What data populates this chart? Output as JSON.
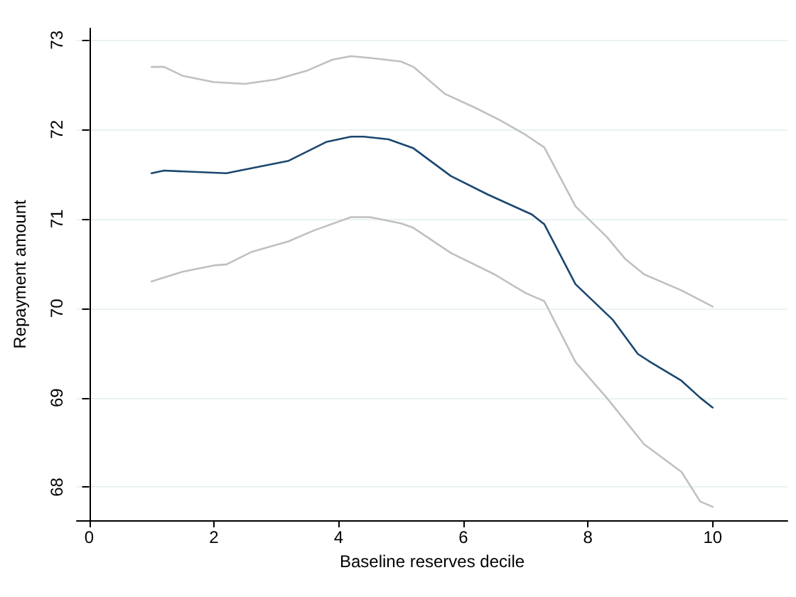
{
  "chart_data": {
    "type": "line",
    "xlabel": "Baseline reserves decile",
    "ylabel": "Repayment amount",
    "xlim": [
      -0.2,
      11.2
    ],
    "xticks": [
      0,
      2,
      4,
      6,
      8,
      10
    ],
    "ylim": [
      67.63,
      73.13
    ],
    "yticks": [
      68,
      69,
      70,
      71,
      72,
      73
    ],
    "grid": "y",
    "marker": "none",
    "line_style": "solid",
    "series": [
      {
        "color": "#c0c0c0",
        "x": [
          1,
          1.2,
          1.5,
          2,
          2.5,
          3,
          3.5,
          3.9,
          4.2,
          4.5,
          5.0,
          5.2,
          5.7,
          6.2,
          6.6,
          7.0,
          7.3,
          7.8,
          8.3,
          8.6,
          8.9,
          9.5,
          10
        ],
        "values": [
          72.7,
          72.7,
          72.6,
          72.53,
          72.51,
          72.56,
          72.66,
          72.78,
          72.82,
          72.8,
          72.76,
          72.7,
          72.4,
          72.24,
          72.1,
          71.94,
          71.8,
          71.14,
          70.8,
          70.55,
          70.38,
          70.2,
          70.02
        ]
      },
      {
        "color": "#1a476f",
        "x": [
          1,
          1.2,
          2.2,
          3.2,
          3.8,
          4.2,
          4.4,
          4.8,
          5.2,
          5.8,
          6.4,
          7.1,
          7.3,
          7.8,
          8.4,
          8.8,
          9.0,
          9.5,
          9.8,
          10
        ],
        "values": [
          71.51,
          71.54,
          71.51,
          71.65,
          71.86,
          71.92,
          71.92,
          71.89,
          71.79,
          71.48,
          71.27,
          71.05,
          70.94,
          70.27,
          69.87,
          69.49,
          69.4,
          69.19,
          69.0,
          68.89
        ]
      },
      {
        "color": "#c0c0c0",
        "x": [
          1,
          1.5,
          2.0,
          2.2,
          2.6,
          3.2,
          3.6,
          4.2,
          4.5,
          5.0,
          5.2,
          5.8,
          6.5,
          7.0,
          7.3,
          7.8,
          8.3,
          8.9,
          9.5,
          9.8,
          10
        ],
        "values": [
          70.3,
          70.41,
          70.48,
          70.49,
          70.63,
          70.75,
          70.87,
          71.02,
          71.02,
          70.95,
          70.9,
          70.62,
          70.38,
          70.17,
          70.08,
          69.4,
          69.0,
          68.48,
          68.17,
          67.84,
          67.78
        ]
      }
    ]
  }
}
